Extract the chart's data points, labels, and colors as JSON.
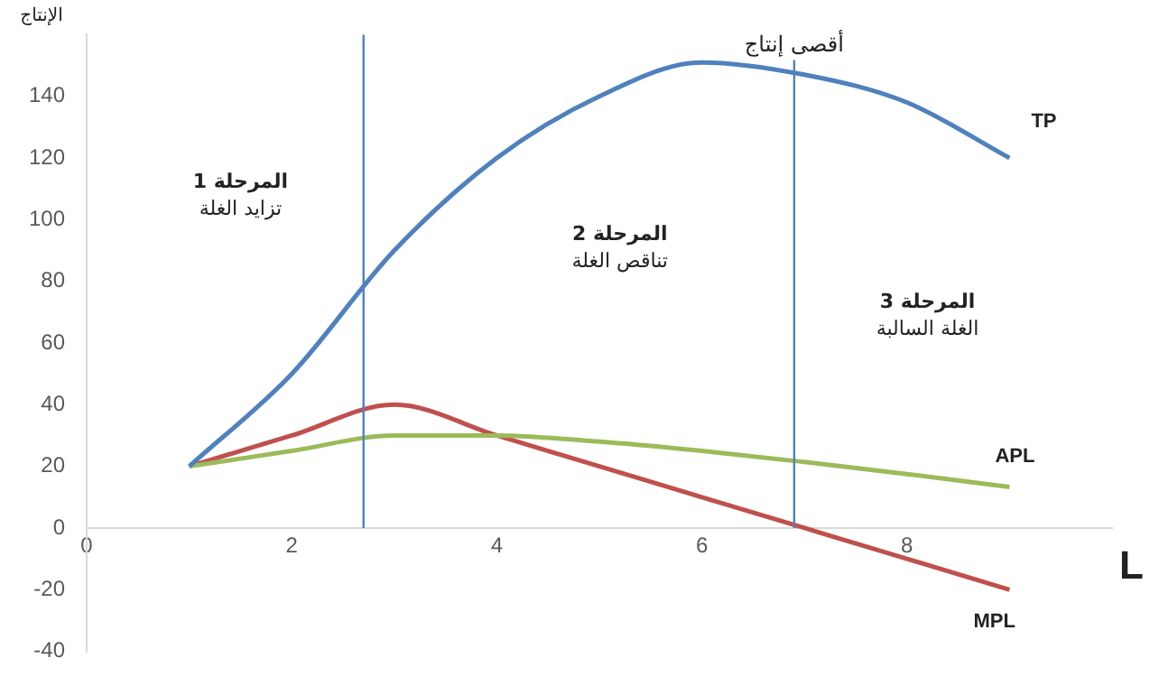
{
  "chart_data": {
    "type": "line",
    "xlabel": "L",
    "ylabel": "الإنتاج",
    "x": [
      1,
      2,
      3,
      4,
      5,
      6,
      7,
      8,
      9
    ],
    "series": [
      {
        "name": "TP",
        "color": "#4f81bd",
        "values": [
          20,
          50,
          90,
          120,
          140,
          151,
          147,
          138,
          120
        ]
      },
      {
        "name": "APL",
        "color": "#9bbb59",
        "values": [
          20,
          25,
          30,
          30,
          28,
          25,
          21.4,
          17.5,
          13.3
        ]
      },
      {
        "name": "MPL",
        "color": "#c0504d",
        "values": [
          20,
          30,
          40,
          30,
          20,
          10,
          0,
          -10,
          -20
        ]
      }
    ],
    "xlim": [
      0,
      10
    ],
    "xticks": [
      0,
      2,
      4,
      6,
      8
    ],
    "ylim": [
      -40,
      160
    ],
    "yticks": [
      -40,
      -20,
      0,
      20,
      40,
      60,
      80,
      100,
      120,
      140
    ],
    "ref_lines": [
      {
        "axis": "x",
        "value": 2.7,
        "color": "#4f81bd"
      },
      {
        "axis": "x",
        "value": 6.9,
        "label": "أقصى إنتاج",
        "color": "#4f81bd"
      }
    ],
    "annotations": [
      "المرحلة 1\nتزايد الغلة",
      "المرحلة 2\nتناقص الغلة",
      "المرحلة 3\nالغلة السالبة"
    ],
    "grid": false,
    "legend": false,
    "marker": "none",
    "line_style": "solid"
  }
}
